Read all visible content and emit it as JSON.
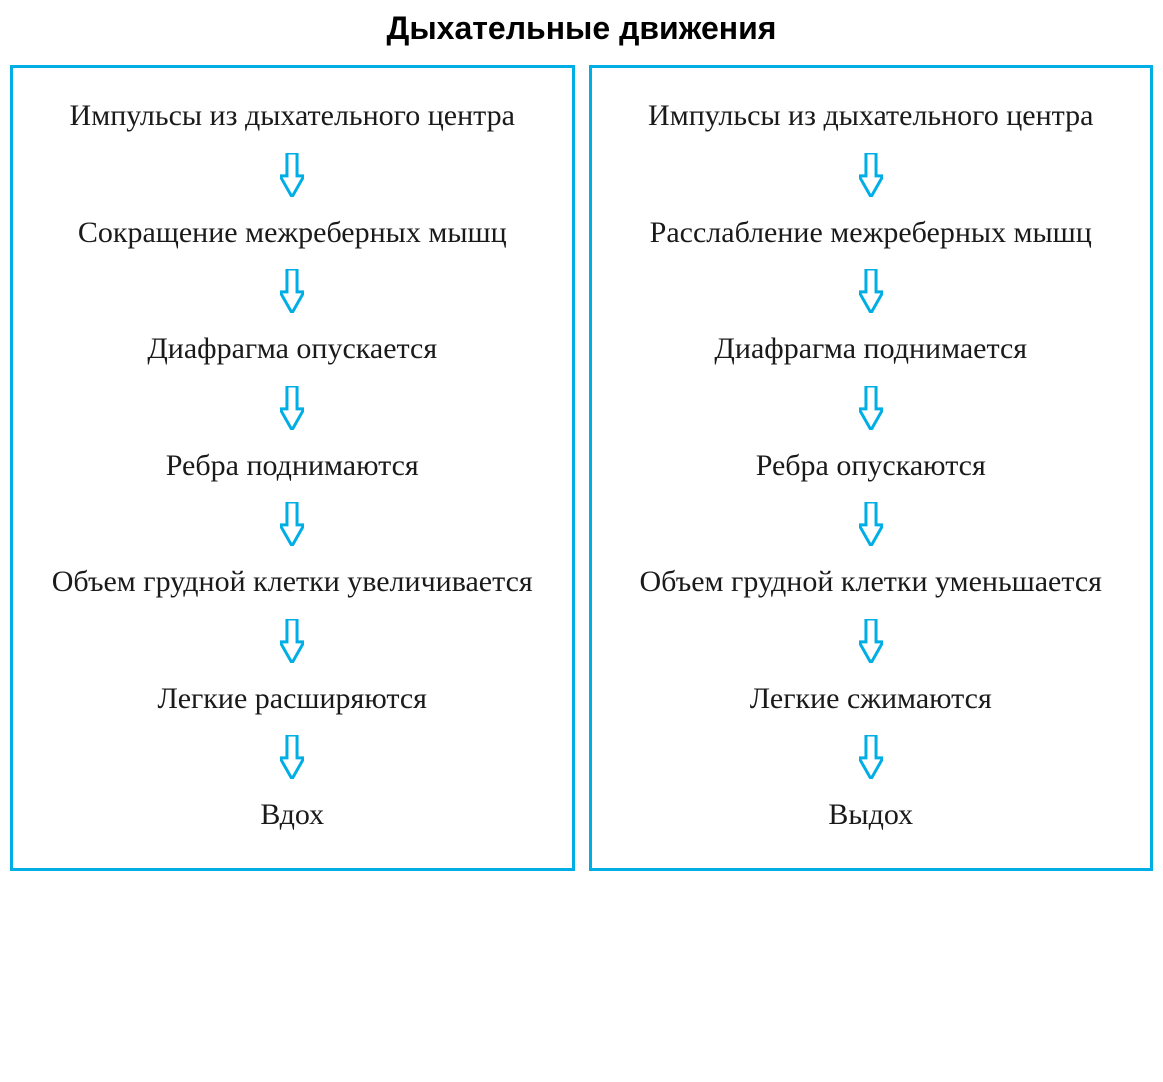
{
  "title": "Дыхательные движения",
  "arrow_color": "#00aee6",
  "border_color": "#00aee6",
  "text_color": "#1a1a1a",
  "background_color": "#ffffff",
  "arrow_width": 24,
  "arrow_height": 44,
  "step_fontsize": 30,
  "title_fontsize": 32,
  "columns": [
    {
      "steps": [
        "Импульсы из дыхательного центра",
        "Сокращение межреберных мышц",
        "Диафрагма опускается",
        "Ребра поднимаются",
        "Объем грудной клетки увеличивается",
        "Легкие расширяются",
        "Вдох"
      ]
    },
    {
      "steps": [
        "Импульсы из дыхательного центра",
        "Расслабление межреберных мышц",
        "Диафрагма поднимается",
        "Ребра опускаются",
        "Объем грудной клетки уменьшается",
        "Легкие сжимаются",
        "Выдох"
      ]
    }
  ]
}
